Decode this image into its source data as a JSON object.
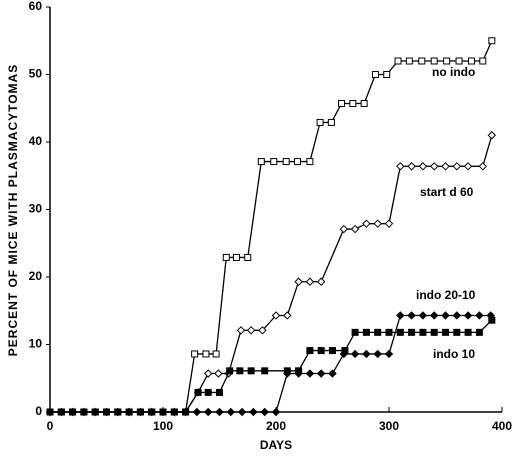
{
  "chart_data": {
    "type": "line",
    "x_label": "DAYS",
    "y_label": "PERCENT OF MICE WITH PLASMACYTOMAS",
    "xlim": [
      0,
      400
    ],
    "xticks": [
      0,
      100,
      200,
      300,
      400
    ],
    "ylim": [
      0,
      60
    ],
    "yticks": [
      0,
      10,
      20,
      30,
      40,
      50,
      60
    ],
    "series": [
      {
        "name": "no indo",
        "color": "#000000",
        "marker": "square",
        "marker_fill": "#ffffff",
        "x": [
          0,
          10,
          20,
          30,
          40,
          50,
          60,
          70,
          80,
          90,
          100,
          110,
          120,
          128,
          138,
          147,
          156,
          165,
          175,
          187,
          198,
          209,
          219,
          230,
          239,
          249,
          258,
          268,
          278,
          288,
          298,
          308,
          318,
          329,
          340,
          351,
          362,
          373,
          383,
          391
        ],
        "values": [
          0,
          0,
          0,
          0,
          0,
          0,
          0,
          0,
          0,
          0,
          0,
          0,
          0,
          8.6,
          8.6,
          8.6,
          22.9,
          22.9,
          22.9,
          37.1,
          37.1,
          37.1,
          37.1,
          37.1,
          42.9,
          42.9,
          45.7,
          45.7,
          45.7,
          50,
          50,
          52,
          52,
          52,
          52,
          52,
          52,
          52,
          52,
          55
        ]
      },
      {
        "name": "start d 60",
        "color": "#000000",
        "marker": "diamond",
        "marker_fill": "#ffffff",
        "x": [
          0,
          10,
          20,
          30,
          40,
          50,
          60,
          70,
          80,
          90,
          100,
          110,
          120,
          131,
          140,
          149,
          158,
          169,
          178,
          188,
          200,
          210,
          220,
          230,
          240,
          260,
          270,
          280,
          290,
          300,
          310,
          320,
          330,
          340,
          350,
          360,
          370,
          383,
          391
        ],
        "values": [
          0,
          0,
          0,
          0,
          0,
          0,
          0,
          0,
          0,
          0,
          0,
          0,
          0,
          2.9,
          5.7,
          5.7,
          5.7,
          12.1,
          12.1,
          12.1,
          14.3,
          14.3,
          19.3,
          19.3,
          19.3,
          27.1,
          27.1,
          27.9,
          27.9,
          27.9,
          36.4,
          36.4,
          36.4,
          36.4,
          36.4,
          36.4,
          36.4,
          36.4,
          41
        ]
      },
      {
        "name": "indo 20-10",
        "color": "#000000",
        "marker": "diamond",
        "marker_fill": "#000000",
        "x": [
          0,
          10,
          20,
          30,
          40,
          50,
          60,
          70,
          80,
          90,
          100,
          110,
          120,
          130,
          140,
          150,
          160,
          170,
          180,
          190,
          200,
          210,
          220,
          230,
          240,
          250,
          260,
          270,
          280,
          290,
          300,
          310,
          320,
          330,
          340,
          350,
          360,
          370,
          380,
          390
        ],
        "values": [
          0,
          0,
          0,
          0,
          0,
          0,
          0,
          0,
          0,
          0,
          0,
          0,
          0,
          0,
          0,
          0,
          0,
          0,
          0,
          0,
          0,
          5.7,
          5.7,
          5.7,
          5.7,
          5.7,
          8.6,
          8.6,
          8.6,
          8.6,
          8.6,
          14.3,
          14.3,
          14.3,
          14.3,
          14.3,
          14.3,
          14.3,
          14.3,
          14.3
        ]
      },
      {
        "name": "indo 10",
        "color": "#000000",
        "marker": "square",
        "marker_fill": "#000000",
        "x": [
          0,
          10,
          20,
          30,
          40,
          50,
          60,
          70,
          80,
          90,
          100,
          110,
          120,
          131,
          140,
          150,
          159,
          168,
          178,
          190,
          210,
          220,
          230,
          240,
          250,
          261,
          270,
          280,
          290,
          300,
          310,
          320,
          330,
          340,
          350,
          360,
          370,
          380,
          391
        ],
        "values": [
          0,
          0,
          0,
          0,
          0,
          0,
          0,
          0,
          0,
          0,
          0,
          0,
          0,
          2.9,
          2.9,
          2.9,
          6.1,
          6.1,
          6.1,
          6.1,
          6.1,
          6.1,
          9.1,
          9.1,
          9.1,
          9.1,
          11.8,
          11.8,
          11.8,
          11.8,
          11.8,
          11.8,
          11.8,
          11.8,
          11.8,
          11.8,
          11.8,
          11.8,
          13.6
        ]
      }
    ]
  }
}
